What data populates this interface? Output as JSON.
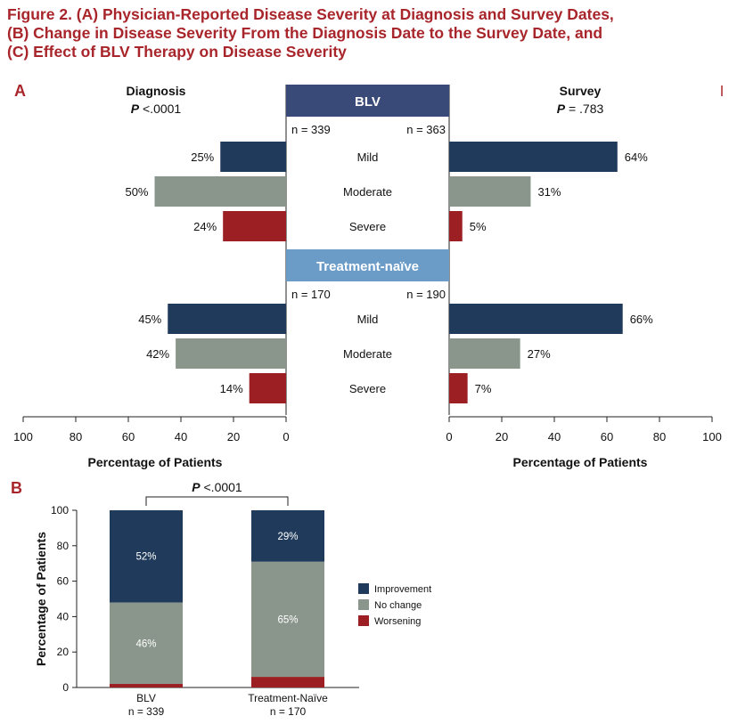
{
  "figure": {
    "title_lines": [
      "Figure 2. (A) Physician-Reported Disease Severity at Diagnosis and Survey Dates,",
      "(B) Change in Disease Severity From the Diagnosis Date to the Survey Date, and",
      "(C) Effect of BLV Therapy on Disease Severity"
    ]
  },
  "colors": {
    "title": "#a8262b",
    "mild": "#1f3a5a",
    "moderate": "#8a968c",
    "severe": "#9b1f23",
    "blv_header": "#3a4a78",
    "naive_header": "#6b9cc8"
  },
  "chart_data": [
    {
      "type": "bar",
      "panel": "A",
      "orientation": "horizontal-butterfly",
      "left": {
        "title": "Diagnosis",
        "p_value": "P <.0001"
      },
      "right": {
        "title": "Survey",
        "p_value": "P = .783"
      },
      "categories": [
        "Mild",
        "Moderate",
        "Severe"
      ],
      "groups": [
        {
          "name": "BLV",
          "n_left": "n = 339",
          "n_right": "n = 363",
          "left_values": [
            25,
            50,
            24
          ],
          "right_values": [
            64,
            31,
            5
          ]
        },
        {
          "name": "Treatment-naïve",
          "n_left": "n = 170",
          "n_right": "n = 190",
          "left_values": [
            45,
            42,
            14
          ],
          "right_values": [
            66,
            27,
            7
          ]
        }
      ],
      "xlabel": "Percentage of Patients",
      "xlim": [
        0,
        100
      ],
      "xticks": [
        100,
        80,
        60,
        40,
        20,
        0
      ]
    },
    {
      "type": "bar",
      "panel": "B",
      "stacked": true,
      "categories": [
        "BLV",
        "Treatment-Naïve"
      ],
      "category_n": [
        "n = 339",
        "n = 170"
      ],
      "series": [
        {
          "name": "Worsening",
          "values": [
            2,
            6
          ]
        },
        {
          "name": "No change",
          "values": [
            46,
            65
          ]
        },
        {
          "name": "Improvement",
          "values": [
            52,
            29
          ]
        }
      ],
      "legend_order": [
        "Improvement",
        "No change",
        "Worsening"
      ],
      "legend_position": "right",
      "ylabel": "Percentage of Patients",
      "ylim": [
        0,
        100
      ],
      "yticks": [
        0,
        20,
        40,
        60,
        80,
        100
      ],
      "annotation": "P <.0001"
    }
  ]
}
